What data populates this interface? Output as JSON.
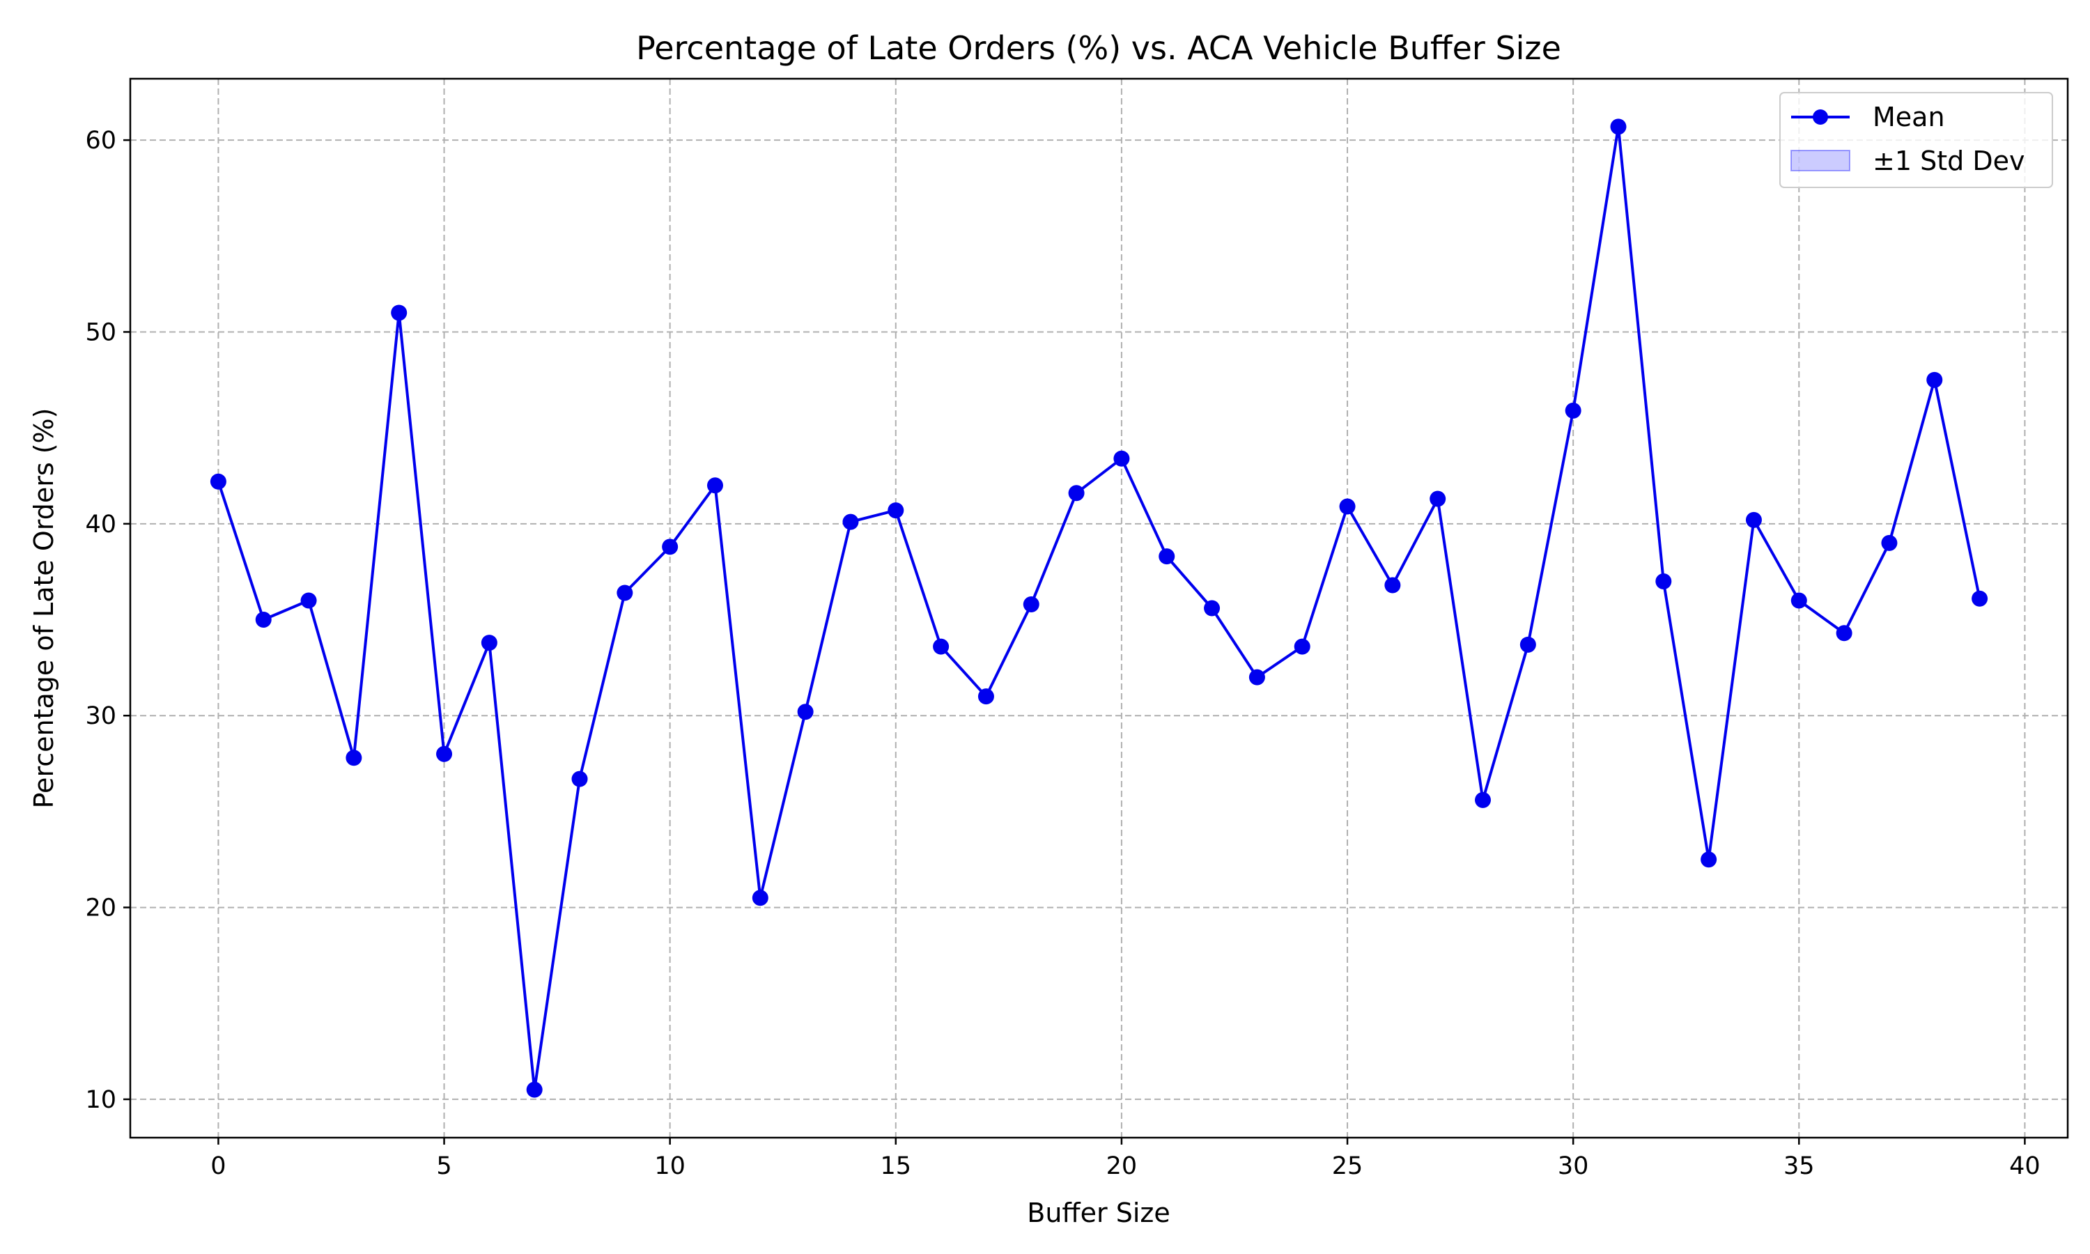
{
  "chart_data": {
    "type": "line",
    "title": "Percentage of Late Orders (%) vs. ACA Vehicle Buffer Size",
    "xlabel": "Buffer Size",
    "ylabel": "Percentage of Late Orders (%)",
    "xlim": [
      -1.95,
      40.95
    ],
    "ylim": [
      8.0,
      63.2
    ],
    "xticks": [
      0,
      5,
      10,
      15,
      20,
      25,
      30,
      35,
      40
    ],
    "yticks": [
      10,
      20,
      30,
      40,
      50,
      60
    ],
    "grid": true,
    "legend_position": "upper right",
    "legend": [
      {
        "label": "Mean",
        "kind": "line-marker",
        "color": "#0000ee"
      },
      {
        "label": "±1 Std Dev",
        "kind": "band",
        "color": "#0000ff"
      }
    ],
    "series": [
      {
        "name": "Mean",
        "color": "#0000ee",
        "x": [
          0,
          1,
          2,
          3,
          4,
          5,
          6,
          7,
          8,
          9,
          10,
          11,
          12,
          13,
          14,
          15,
          16,
          17,
          18,
          19,
          20,
          21,
          22,
          23,
          24,
          25,
          26,
          27,
          28,
          29,
          30,
          31,
          32,
          33,
          34,
          35,
          36,
          37,
          38,
          39
        ],
        "y": [
          42.2,
          35.0,
          36.0,
          27.8,
          51.0,
          28.0,
          33.8,
          10.5,
          26.7,
          36.4,
          38.8,
          42.0,
          20.5,
          30.2,
          40.1,
          40.7,
          33.6,
          31.0,
          35.8,
          41.6,
          43.4,
          38.3,
          35.6,
          32.0,
          33.6,
          40.9,
          36.8,
          41.3,
          25.6,
          33.7,
          45.9,
          60.7,
          37.0,
          22.5,
          40.2,
          36.0,
          34.3,
          39.0,
          47.5,
          36.1
        ]
      }
    ]
  }
}
